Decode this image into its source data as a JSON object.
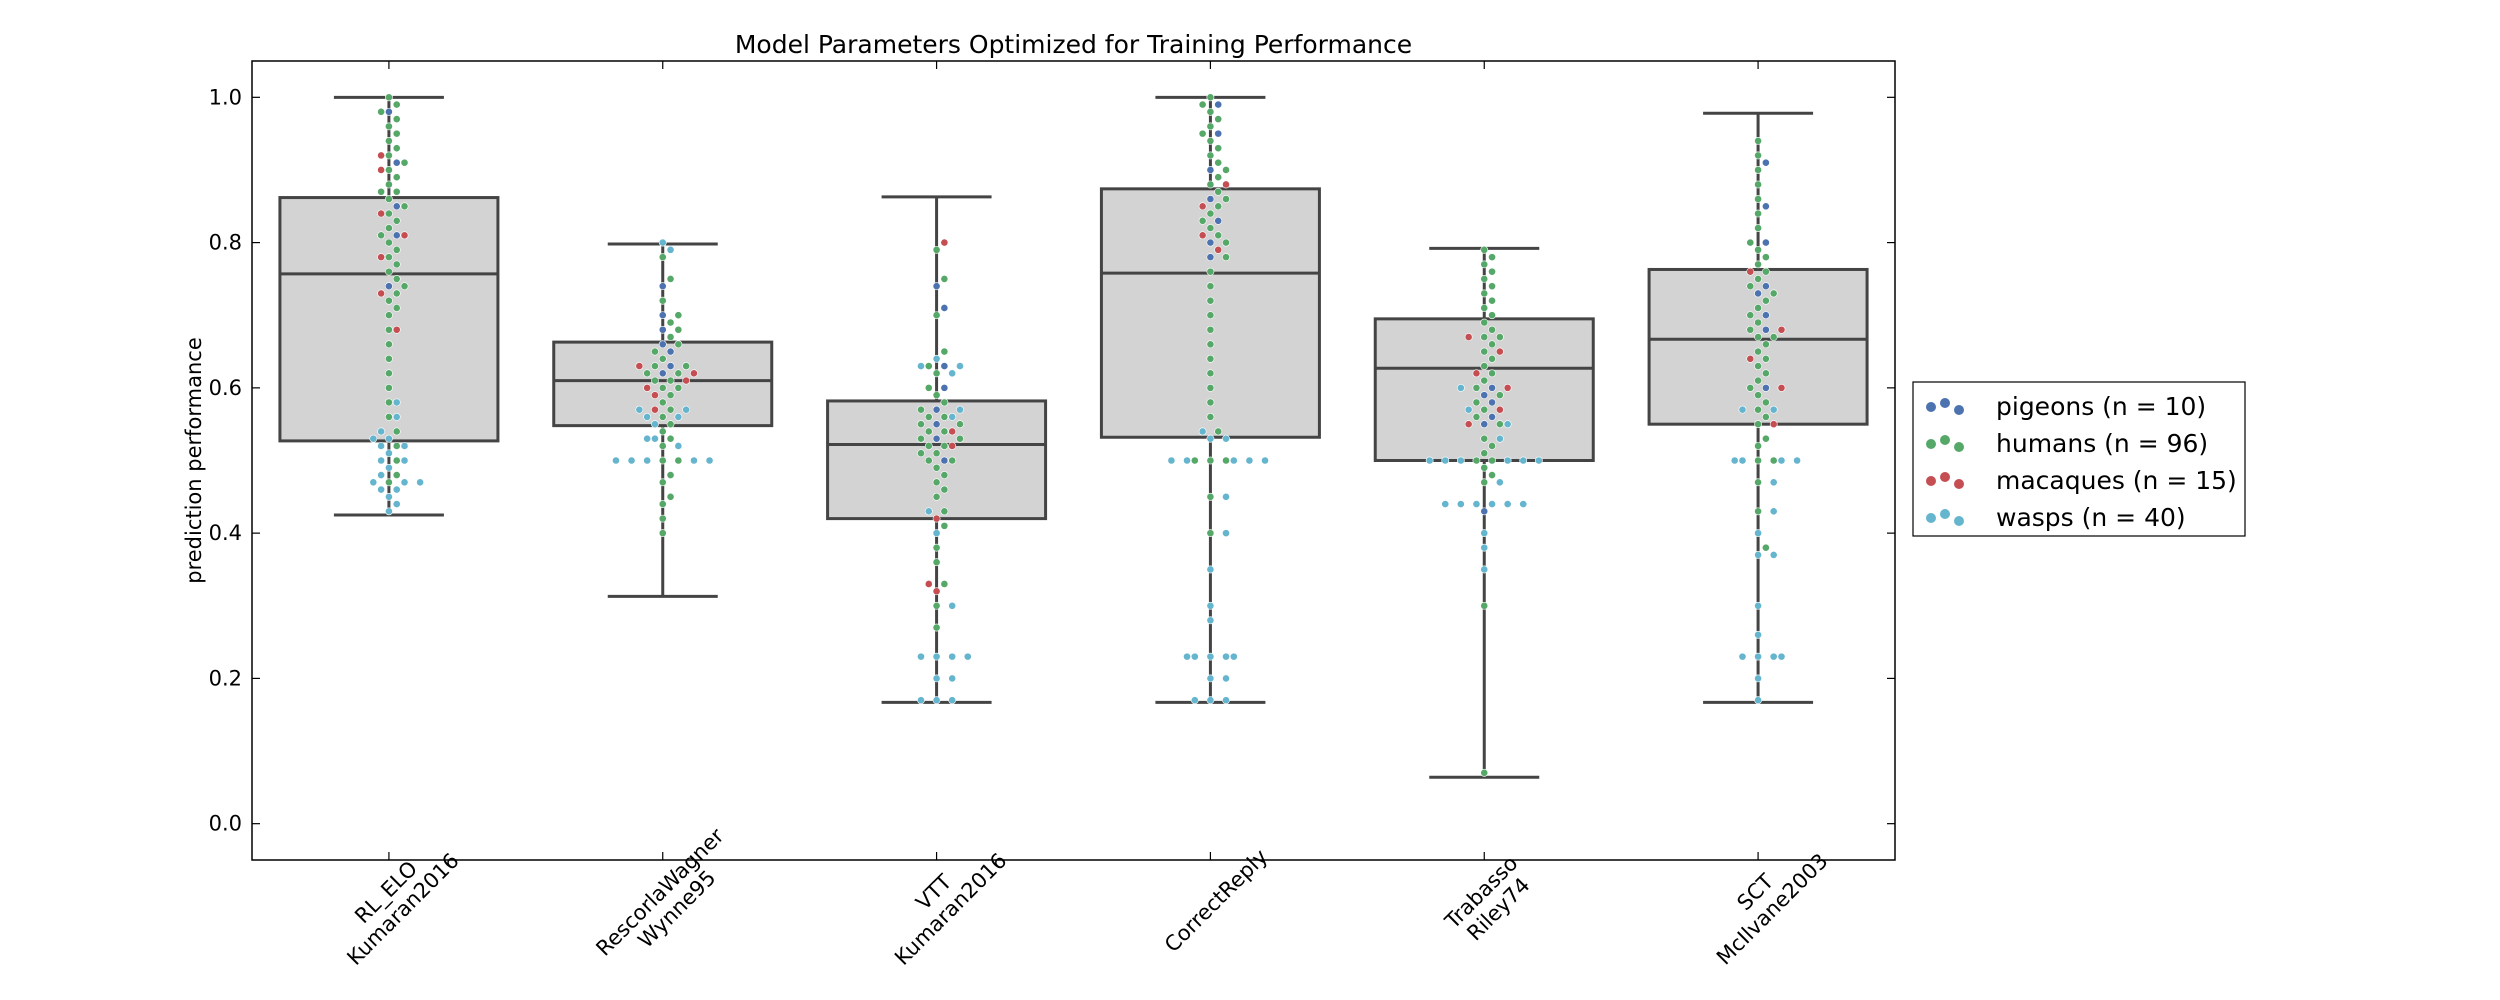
{
  "chart_data": {
    "type": "boxplot-swarm",
    "title": "Model Parameters Optimized for Training Performance",
    "xlabel": "",
    "ylabel": "prediction performance",
    "ylim": [
      -0.05,
      1.05
    ],
    "yticks": [
      0.0,
      0.2,
      0.4,
      0.6,
      0.8,
      1.0
    ],
    "ytick_labels": [
      "0.0",
      "0.2",
      "0.4",
      "0.6",
      "0.8",
      "1.0"
    ],
    "grid": false,
    "legend_position": "right",
    "categories": [
      [
        "RL_ELO",
        "Kumaran2016"
      ],
      [
        "RescorlaWagner",
        "Wynne95"
      ],
      [
        "VTT",
        "Kumaran2016"
      ],
      [
        "CorrectReply"
      ],
      [
        "Trabasso",
        "Riley74"
      ],
      [
        "SCT",
        "McIlvane2003"
      ]
    ],
    "boxes": [
      {
        "whisker_low": 0.425,
        "q1": 0.527,
        "median": 0.757,
        "q3": 0.862,
        "whisker_high": 1.0
      },
      {
        "whisker_low": 0.313,
        "q1": 0.548,
        "median": 0.61,
        "q3": 0.663,
        "whisker_high": 0.798
      },
      {
        "whisker_low": 0.167,
        "q1": 0.42,
        "median": 0.522,
        "q3": 0.582,
        "whisker_high": 0.863
      },
      {
        "whisker_low": 0.167,
        "q1": 0.532,
        "median": 0.758,
        "q3": 0.874,
        "whisker_high": 1.0
      },
      {
        "whisker_low": 0.064,
        "q1": 0.5,
        "median": 0.627,
        "q3": 0.695,
        "whisker_high": 0.792
      },
      {
        "whisker_low": 0.167,
        "q1": 0.55,
        "median": 0.667,
        "q3": 0.763,
        "whisker_high": 0.978
      }
    ],
    "series": [
      {
        "name": "pigeons (n = 10)",
        "color": "#4c72b0",
        "values": [
          [
            0.98,
            0.91,
            0.85,
            0.81,
            0.74
          ],
          [
            0.74,
            0.7,
            0.68,
            0.66,
            0.65,
            0.63,
            0.62
          ],
          [
            0.74,
            0.71,
            0.63,
            0.6,
            0.57,
            0.55,
            0.53,
            0.5
          ],
          [
            0.99,
            0.95,
            0.9,
            0.86,
            0.83,
            0.8,
            0.78
          ],
          [
            0.6,
            0.59,
            0.58,
            0.56,
            0.55,
            0.43
          ],
          [
            0.91,
            0.85,
            0.8,
            0.74,
            0.73,
            0.7,
            0.68,
            0.6
          ]
        ]
      },
      {
        "name": "humans (n = 96)",
        "color": "#55a868",
        "values": [
          [
            1.0,
            0.99,
            0.98,
            0.97,
            0.96,
            0.95,
            0.94,
            0.93,
            0.92,
            0.91,
            0.9,
            0.89,
            0.88,
            0.87,
            0.87,
            0.86,
            0.85,
            0.84,
            0.83,
            0.82,
            0.81,
            0.8,
            0.79,
            0.78,
            0.77,
            0.76,
            0.75,
            0.74,
            0.73,
            0.72,
            0.71,
            0.7,
            0.68,
            0.66,
            0.64,
            0.62,
            0.6,
            0.58,
            0.56,
            0.54,
            0.52,
            0.5,
            0.48,
            0.47
          ],
          [
            0.78,
            0.75,
            0.72,
            0.7,
            0.69,
            0.68,
            0.67,
            0.66,
            0.65,
            0.64,
            0.63,
            0.63,
            0.62,
            0.62,
            0.61,
            0.61,
            0.6,
            0.6,
            0.59,
            0.58,
            0.57,
            0.56,
            0.55,
            0.54,
            0.53,
            0.52,
            0.5,
            0.5,
            0.48,
            0.47,
            0.45,
            0.44,
            0.42,
            0.4
          ],
          [
            0.79,
            0.75,
            0.7,
            0.65,
            0.63,
            0.62,
            0.6,
            0.59,
            0.58,
            0.57,
            0.56,
            0.56,
            0.55,
            0.55,
            0.54,
            0.54,
            0.53,
            0.53,
            0.52,
            0.52,
            0.51,
            0.51,
            0.5,
            0.5,
            0.49,
            0.48,
            0.47,
            0.46,
            0.45,
            0.43,
            0.41,
            0.38,
            0.36,
            0.33,
            0.3,
            0.27
          ],
          [
            1.0,
            0.99,
            0.98,
            0.97,
            0.96,
            0.95,
            0.94,
            0.93,
            0.92,
            0.91,
            0.9,
            0.89,
            0.88,
            0.87,
            0.86,
            0.85,
            0.84,
            0.83,
            0.82,
            0.81,
            0.8,
            0.78,
            0.76,
            0.74,
            0.72,
            0.7,
            0.68,
            0.66,
            0.64,
            0.62,
            0.6,
            0.58,
            0.56,
            0.54,
            0.5,
            0.5,
            0.5,
            0.45,
            0.4
          ],
          [
            0.79,
            0.78,
            0.77,
            0.76,
            0.75,
            0.74,
            0.73,
            0.72,
            0.71,
            0.7,
            0.69,
            0.68,
            0.67,
            0.67,
            0.66,
            0.65,
            0.64,
            0.63,
            0.62,
            0.61,
            0.6,
            0.59,
            0.58,
            0.57,
            0.56,
            0.55,
            0.53,
            0.52,
            0.51,
            0.5,
            0.5,
            0.49,
            0.48,
            0.47,
            0.3,
            0.07
          ],
          [
            0.94,
            0.92,
            0.9,
            0.88,
            0.86,
            0.84,
            0.82,
            0.8,
            0.79,
            0.78,
            0.77,
            0.76,
            0.75,
            0.74,
            0.73,
            0.72,
            0.71,
            0.7,
            0.69,
            0.68,
            0.67,
            0.67,
            0.66,
            0.65,
            0.64,
            0.63,
            0.62,
            0.61,
            0.6,
            0.59,
            0.58,
            0.57,
            0.56,
            0.55,
            0.53,
            0.52,
            0.5,
            0.5,
            0.47,
            0.43,
            0.38
          ]
        ]
      },
      {
        "name": "macaques (n = 15)",
        "color": "#c44e52",
        "values": [
          [
            0.92,
            0.9,
            0.84,
            0.81,
            0.78,
            0.73,
            0.68
          ],
          [
            0.63,
            0.62,
            0.61,
            0.6,
            0.59,
            0.57
          ],
          [
            0.8,
            0.54,
            0.52,
            0.42,
            0.33,
            0.32
          ],
          [
            0.88,
            0.85,
            0.81,
            0.79
          ],
          [
            0.67,
            0.65,
            0.62,
            0.6,
            0.57,
            0.55
          ],
          [
            0.76,
            0.68,
            0.64,
            0.6,
            0.55
          ]
        ]
      },
      {
        "name": "wasps (n = 40)",
        "color": "#64b5cd",
        "values": [
          [
            0.58,
            0.56,
            0.54,
            0.53,
            0.53,
            0.52,
            0.52,
            0.51,
            0.5,
            0.5,
            0.49,
            0.48,
            0.47,
            0.47,
            0.47,
            0.46,
            0.46,
            0.45,
            0.44,
            0.43
          ],
          [
            0.8,
            0.79,
            0.57,
            0.57,
            0.56,
            0.56,
            0.55,
            0.53,
            0.53,
            0.52,
            0.5,
            0.5,
            0.5,
            0.5,
            0.5
          ],
          [
            0.64,
            0.63,
            0.63,
            0.62,
            0.57,
            0.56,
            0.43,
            0.4,
            0.3,
            0.23,
            0.23,
            0.23,
            0.23,
            0.2,
            0.2,
            0.17,
            0.17,
            0.17
          ],
          [
            0.54,
            0.53,
            0.53,
            0.5,
            0.5,
            0.5,
            0.5,
            0.5,
            0.45,
            0.4,
            0.35,
            0.3,
            0.28,
            0.23,
            0.23,
            0.23,
            0.23,
            0.23,
            0.2,
            0.2,
            0.17,
            0.17,
            0.17
          ],
          [
            0.6,
            0.57,
            0.55,
            0.53,
            0.5,
            0.5,
            0.5,
            0.5,
            0.5,
            0.5,
            0.47,
            0.44,
            0.44,
            0.44,
            0.44,
            0.44,
            0.44,
            0.4,
            0.38,
            0.35
          ],
          [
            0.57,
            0.57,
            0.5,
            0.5,
            0.5,
            0.5,
            0.47,
            0.43,
            0.4,
            0.37,
            0.37,
            0.3,
            0.26,
            0.23,
            0.23,
            0.23,
            0.23,
            0.2,
            0.17
          ]
        ]
      }
    ],
    "legend": [
      {
        "label": "pigeons (n = 10)",
        "color": "#4c72b0"
      },
      {
        "label": "humans (n = 96)",
        "color": "#55a868"
      },
      {
        "label": "macaques (n = 15)",
        "color": "#c44e52"
      },
      {
        "label": "wasps (n = 40)",
        "color": "#64b5cd"
      }
    ],
    "box_fill": "#d3d3d3",
    "box_stroke": "#444444"
  }
}
